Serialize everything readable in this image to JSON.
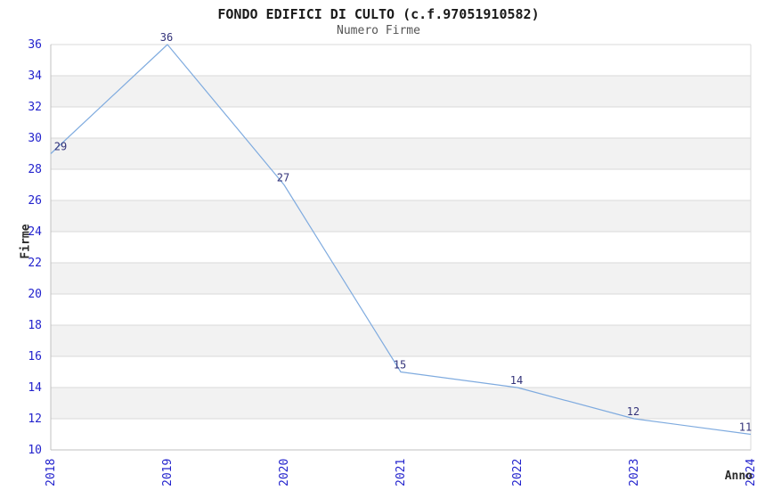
{
  "header": {
    "title": "FONDO EDIFICI DI CULTO (c.f.97051910582)",
    "subtitle": "Numero Firme"
  },
  "chart_data": {
    "type": "line",
    "title": "FONDO EDIFICI DI CULTO (c.f.97051910582)",
    "subtitle": "Numero Firme",
    "xlabel": "Anno",
    "ylabel": "Firme",
    "categories": [
      "2018",
      "2019",
      "2020",
      "2021",
      "2022",
      "2023",
      "2024"
    ],
    "series": [
      {
        "name": "Numero Firme",
        "values": [
          29,
          36,
          27,
          15,
          14,
          12,
          11
        ]
      }
    ],
    "data_labels": [
      "29",
      "36",
      "27",
      "15",
      "14",
      "12",
      "11"
    ],
    "ylim": [
      10,
      36
    ],
    "y_tick_step": 2,
    "y_tick_labels": [
      "10",
      "12",
      "14",
      "16",
      "18",
      "20",
      "22",
      "24",
      "26",
      "28",
      "30",
      "32",
      "34",
      "36"
    ],
    "grid": true,
    "legend_position": "none",
    "band_fill": "alternating-horizontal"
  },
  "colors": {
    "line": "#7fabdf",
    "tick_label": "#2323cd",
    "data_label": "#33337a",
    "band": "#f2f2f2",
    "gridline": "#d9d9d9",
    "axis": "#c0c0c0",
    "background": "#ffffff"
  }
}
